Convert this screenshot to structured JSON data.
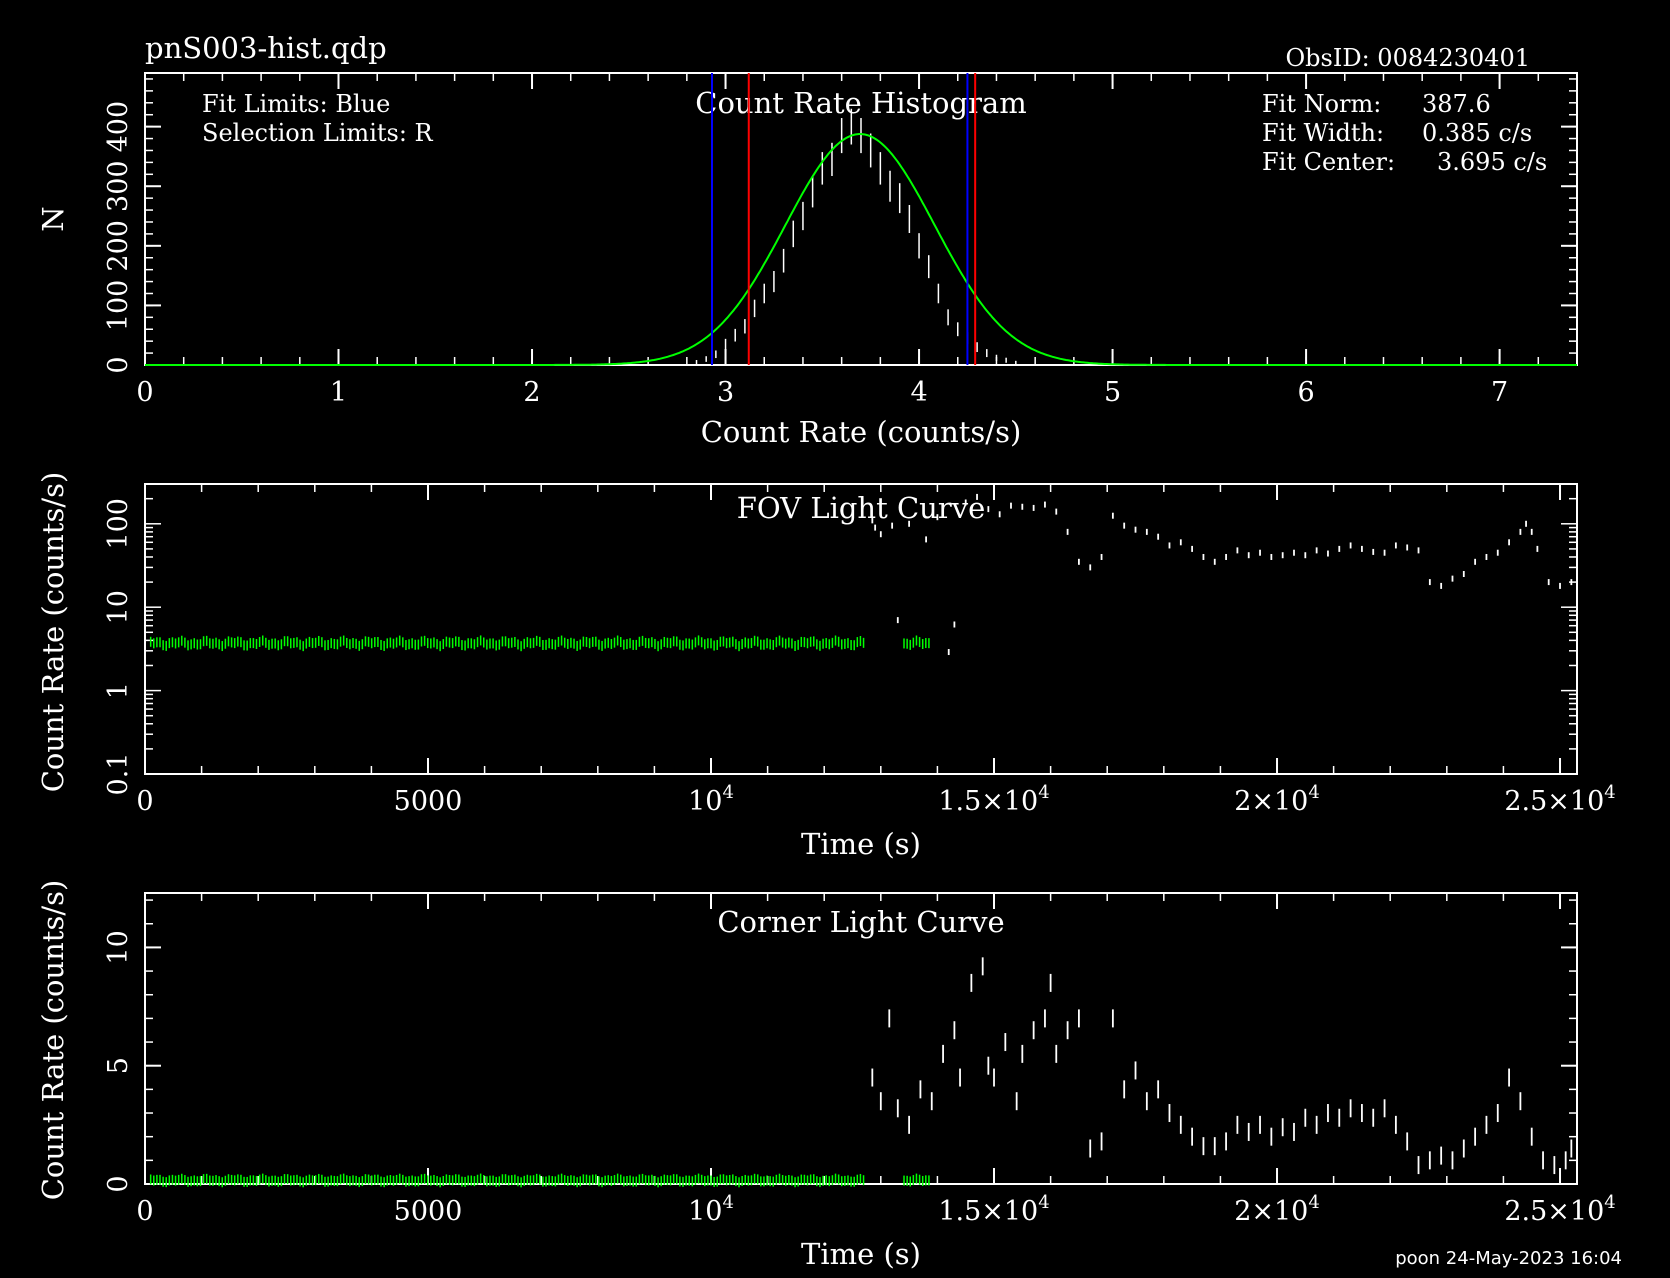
{
  "header": {
    "filename": "pnS003-hist.qdp",
    "obsid": "ObsID: 0084230401",
    "footer": "poon 24-May-2023 16:04"
  },
  "colors": {
    "background": "#000000",
    "foreground": "#ffffff",
    "fit": "#00ff00",
    "fit_limits": "#0000ff",
    "selection_limits": "#ff0000"
  },
  "chart_data": [
    {
      "type": "line",
      "title": "Count Rate Histogram",
      "xlabel": "Count Rate (counts/s)",
      "ylabel": "N",
      "xlim": [
        0,
        7.4
      ],
      "ylim": [
        0,
        490
      ],
      "xticks": [
        "0",
        "1",
        "2",
        "3",
        "4",
        "5",
        "6",
        "7"
      ],
      "yticks": [
        "0",
        "100",
        "200",
        "300",
        "400"
      ],
      "annotations_left": [
        "Fit Limits: Blue",
        "Selection Limits: R"
      ],
      "fit_params": [
        {
          "label": "Fit Norm:",
          "value": "387.6"
        },
        {
          "label": "Fit Width:",
          "value": "0.385 c/s"
        },
        {
          "label": "Fit Center:",
          "value": "3.695 c/s"
        }
      ],
      "fit_limits": [
        2.93,
        4.25
      ],
      "selection_limits": [
        3.12,
        4.29
      ],
      "histogram": {
        "x": [
          2.85,
          2.9,
          2.95,
          3.0,
          3.05,
          3.1,
          3.15,
          3.2,
          3.25,
          3.3,
          3.35,
          3.4,
          3.45,
          3.5,
          3.55,
          3.6,
          3.65,
          3.7,
          3.75,
          3.8,
          3.85,
          3.9,
          3.95,
          4.0,
          4.05,
          4.1,
          4.15,
          4.2,
          4.25,
          4.3,
          4.35,
          4.4,
          4.45,
          4.5
        ],
        "y": [
          5,
          10,
          18,
          35,
          50,
          65,
          95,
          120,
          140,
          175,
          220,
          250,
          290,
          330,
          345,
          385,
          400,
          385,
          360,
          330,
          300,
          280,
          245,
          200,
          165,
          120,
          80,
          60,
          45,
          30,
          20,
          12,
          8,
          4
        ]
      }
    },
    {
      "type": "scatter",
      "title": "FOV Light Curve",
      "xlabel": "Time (s)",
      "ylabel": "Count Rate (counts/s)",
      "xlim": [
        0,
        25300
      ],
      "ylim": [
        0.1,
        300
      ],
      "yscale": "log",
      "xticks": [
        "0",
        "5000",
        "10",
        "1.5×10",
        "2×10",
        "2.5×10"
      ],
      "xtick_exp": "4",
      "yticks": [
        "0.1",
        "1",
        "10",
        "100"
      ],
      "selected_level": 3.7,
      "selected_range": [
        0,
        13900
      ],
      "points": [
        [
          12850,
          110
        ],
        [
          12900,
          90
        ],
        [
          13000,
          75
        ],
        [
          13200,
          95
        ],
        [
          13300,
          7
        ],
        [
          13500,
          100
        ],
        [
          13800,
          65
        ],
        [
          14000,
          120
        ],
        [
          14200,
          2.9
        ],
        [
          14300,
          6.2
        ],
        [
          14500,
          180
        ],
        [
          14700,
          210
        ],
        [
          14900,
          150
        ],
        [
          15100,
          130
        ],
        [
          15300,
          165
        ],
        [
          15500,
          160
        ],
        [
          15700,
          155
        ],
        [
          15900,
          170
        ],
        [
          16100,
          140
        ],
        [
          16300,
          80
        ],
        [
          16500,
          35
        ],
        [
          16700,
          30
        ],
        [
          16900,
          40
        ],
        [
          17100,
          125
        ],
        [
          17300,
          95
        ],
        [
          17500,
          85
        ],
        [
          17700,
          80
        ],
        [
          17900,
          70
        ],
        [
          18100,
          55
        ],
        [
          18300,
          60
        ],
        [
          18500,
          50
        ],
        [
          18700,
          40
        ],
        [
          18900,
          35
        ],
        [
          19100,
          40
        ],
        [
          19300,
          48
        ],
        [
          19500,
          42
        ],
        [
          19700,
          45
        ],
        [
          19900,
          40
        ],
        [
          20100,
          42
        ],
        [
          20300,
          45
        ],
        [
          20500,
          42
        ],
        [
          20700,
          48
        ],
        [
          20900,
          44
        ],
        [
          21100,
          50
        ],
        [
          21300,
          55
        ],
        [
          21500,
          50
        ],
        [
          21700,
          46
        ],
        [
          21900,
          45
        ],
        [
          22100,
          55
        ],
        [
          22300,
          52
        ],
        [
          22500,
          48
        ],
        [
          22700,
          20
        ],
        [
          22900,
          18
        ],
        [
          23100,
          22
        ],
        [
          23300,
          25
        ],
        [
          23500,
          35
        ],
        [
          23700,
          40
        ],
        [
          23900,
          45
        ],
        [
          24100,
          60
        ],
        [
          24300,
          80
        ],
        [
          24400,
          100
        ],
        [
          24500,
          80
        ],
        [
          24600,
          50
        ],
        [
          24800,
          20
        ],
        [
          25000,
          18
        ],
        [
          25200,
          20
        ]
      ]
    },
    {
      "type": "scatter",
      "title": "Corner Light Curve",
      "xlabel": "Time (s)",
      "ylabel": "Count Rate (counts/s)",
      "xlim": [
        0,
        25300
      ],
      "ylim": [
        0,
        12.3
      ],
      "xticks": [
        "0",
        "5000",
        "10",
        "1.5×10",
        "2×10",
        "2.5×10"
      ],
      "xtick_exp": "4",
      "yticks": [
        "0",
        "5",
        "10"
      ],
      "selected_level": 0.15,
      "selected_range": [
        0,
        13900
      ],
      "points": [
        [
          12850,
          4.5
        ],
        [
          13000,
          3.5
        ],
        [
          13150,
          7.0
        ],
        [
          13300,
          3.2
        ],
        [
          13500,
          2.5
        ],
        [
          13700,
          4.0
        ],
        [
          13900,
          3.5
        ],
        [
          14100,
          5.5
        ],
        [
          14300,
          6.5
        ],
        [
          14400,
          4.5
        ],
        [
          14600,
          8.5
        ],
        [
          14800,
          9.2
        ],
        [
          14900,
          5.0
        ],
        [
          15000,
          4.5
        ],
        [
          15200,
          6.0
        ],
        [
          15400,
          3.5
        ],
        [
          15500,
          5.5
        ],
        [
          15700,
          6.5
        ],
        [
          15900,
          7.0
        ],
        [
          16000,
          8.5
        ],
        [
          16100,
          5.5
        ],
        [
          16300,
          6.5
        ],
        [
          16500,
          7.0
        ],
        [
          16700,
          1.5
        ],
        [
          16900,
          1.8
        ],
        [
          17100,
          7.0
        ],
        [
          17300,
          4.0
        ],
        [
          17500,
          4.8
        ],
        [
          17700,
          3.5
        ],
        [
          17900,
          4.0
        ],
        [
          18100,
          3.0
        ],
        [
          18300,
          2.5
        ],
        [
          18500,
          2.0
        ],
        [
          18700,
          1.6
        ],
        [
          18900,
          1.6
        ],
        [
          19100,
          1.8
        ],
        [
          19300,
          2.5
        ],
        [
          19500,
          2.2
        ],
        [
          19700,
          2.5
        ],
        [
          19900,
          2.0
        ],
        [
          20100,
          2.4
        ],
        [
          20300,
          2.2
        ],
        [
          20500,
          2.8
        ],
        [
          20700,
          2.5
        ],
        [
          20900,
          3.0
        ],
        [
          21100,
          2.8
        ],
        [
          21300,
          3.2
        ],
        [
          21500,
          3.0
        ],
        [
          21700,
          2.8
        ],
        [
          21900,
          3.2
        ],
        [
          22100,
          2.5
        ],
        [
          22300,
          1.8
        ],
        [
          22500,
          0.8
        ],
        [
          22700,
          1.0
        ],
        [
          22900,
          1.2
        ],
        [
          23100,
          1.0
        ],
        [
          23300,
          1.5
        ],
        [
          23500,
          2.0
        ],
        [
          23700,
          2.5
        ],
        [
          23900,
          3.0
        ],
        [
          24100,
          4.5
        ],
        [
          24300,
          3.5
        ],
        [
          24500,
          2.0
        ],
        [
          24700,
          1.0
        ],
        [
          24900,
          0.8
        ],
        [
          25100,
          1.0
        ],
        [
          25200,
          1.5
        ]
      ]
    }
  ]
}
